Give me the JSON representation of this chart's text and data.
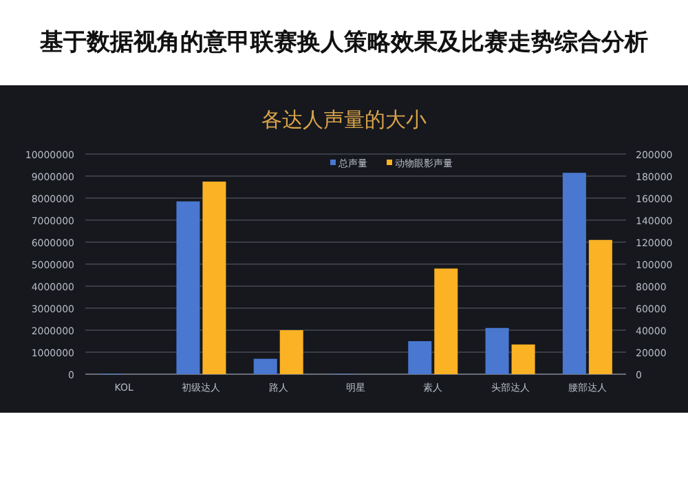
{
  "chart_data": {
    "type": "bar",
    "title": "各达人声量的大小",
    "annotations": [
      "基于数据视角的意甲联赛换人策略效果及比赛走势综合分析"
    ],
    "categories": [
      "KOL",
      "初级达人",
      "路人",
      "明星",
      "素人",
      "头部达人",
      "腰部达人"
    ],
    "series": [
      {
        "name": "总声量",
        "color": "#4a78d0",
        "values": [
          30000,
          7850000,
          700000,
          20000,
          1500000,
          2100000,
          9150000
        ]
      },
      {
        "name": "动物眼影声量",
        "color": "#fbb224",
        "axis": "y2",
        "values": [
          0,
          175000,
          40000,
          0,
          96000,
          27000,
          122000
        ]
      }
    ],
    "ylim": [
      0,
      10000000
    ],
    "yticks": [
      0,
      1000000,
      2000000,
      3000000,
      4000000,
      5000000,
      6000000,
      7000000,
      8000000,
      9000000,
      10000000
    ],
    "y2lim": [
      0,
      200000
    ],
    "y2ticks": [
      0,
      20000,
      40000,
      60000,
      80000,
      100000,
      120000,
      140000,
      160000,
      180000,
      200000
    ],
    "grid": "y",
    "legend": "top"
  }
}
